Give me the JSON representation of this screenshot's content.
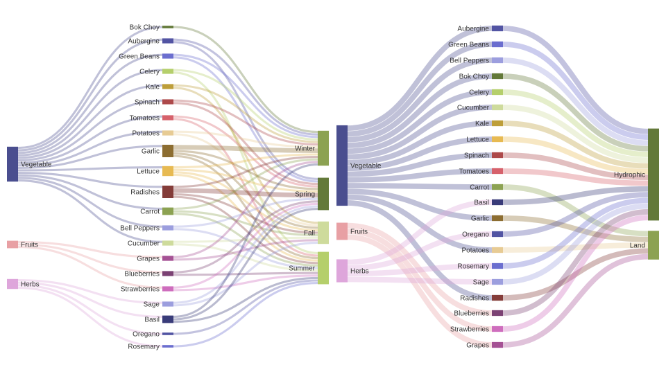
{
  "charts": [
    {
      "nodes": [
        {
          "name": "Vegetable",
          "col": 0,
          "color": "#4a4e8f"
        },
        {
          "name": "Fruits",
          "col": 0,
          "color": "#e8a0a4"
        },
        {
          "name": "Herbs",
          "col": 0,
          "color": "#dea6db"
        },
        {
          "name": "Bok Choy",
          "col": 1,
          "color": "#637939"
        },
        {
          "name": "Aubergine",
          "col": 1,
          "color": "#5254a3"
        },
        {
          "name": "Green Beans",
          "col": 1,
          "color": "#6b6ecf"
        },
        {
          "name": "Celery",
          "col": 1,
          "color": "#b5cf6b"
        },
        {
          "name": "Kale",
          "col": 1,
          "color": "#bd9e39"
        },
        {
          "name": "Spinach",
          "col": 1,
          "color": "#ad494a"
        },
        {
          "name": "Tomatoes",
          "col": 1,
          "color": "#d6616b"
        },
        {
          "name": "Potatoes",
          "col": 1,
          "color": "#e7cb94"
        },
        {
          "name": "Garlic",
          "col": 1,
          "color": "#8c6d31"
        },
        {
          "name": "Lettuce",
          "col": 1,
          "color": "#e7ba52"
        },
        {
          "name": "Radishes",
          "col": 1,
          "color": "#843c39"
        },
        {
          "name": "Carrot",
          "col": 1,
          "color": "#8ca252"
        },
        {
          "name": "Bell Peppers",
          "col": 1,
          "color": "#9c9ede"
        },
        {
          "name": "Cucumber",
          "col": 1,
          "color": "#cedb9c"
        },
        {
          "name": "Grapes",
          "col": 1,
          "color": "#a55194"
        },
        {
          "name": "Blueberries",
          "col": 1,
          "color": "#7b4173"
        },
        {
          "name": "Strawberries",
          "col": 1,
          "color": "#ce6dbd"
        },
        {
          "name": "Sage",
          "col": 1,
          "color": "#9c9ede"
        },
        {
          "name": "Basil",
          "col": 1,
          "color": "#393b79"
        },
        {
          "name": "Oregano",
          "col": 1,
          "color": "#5254a3"
        },
        {
          "name": "Rosemary",
          "col": 1,
          "color": "#6b6ecf"
        },
        {
          "name": "Winter",
          "col": 2,
          "color": "#8ca252"
        },
        {
          "name": "Spring",
          "col": 2,
          "color": "#637939"
        },
        {
          "name": "Fall",
          "col": 2,
          "color": "#cedb9c"
        },
        {
          "name": "Summer",
          "col": 2,
          "color": "#b5cf6b"
        }
      ],
      "links": [
        [
          "Vegetable",
          "Bok Choy",
          1
        ],
        [
          "Vegetable",
          "Aubergine",
          1
        ],
        [
          "Vegetable",
          "Green Beans",
          1
        ],
        [
          "Vegetable",
          "Celery",
          1
        ],
        [
          "Vegetable",
          "Kale",
          1
        ],
        [
          "Vegetable",
          "Spinach",
          1
        ],
        [
          "Vegetable",
          "Tomatoes",
          1
        ],
        [
          "Vegetable",
          "Potatoes",
          1
        ],
        [
          "Vegetable",
          "Garlic",
          1
        ],
        [
          "Vegetable",
          "Lettuce",
          1
        ],
        [
          "Vegetable",
          "Radishes",
          1
        ],
        [
          "Vegetable",
          "Carrot",
          1
        ],
        [
          "Vegetable",
          "Bell Peppers",
          1
        ],
        [
          "Vegetable",
          "Cucumber",
          1
        ],
        [
          "Fruits",
          "Grapes",
          1
        ],
        [
          "Fruits",
          "Blueberries",
          1
        ],
        [
          "Fruits",
          "Strawberries",
          1
        ],
        [
          "Herbs",
          "Sage",
          1
        ],
        [
          "Herbs",
          "Basil",
          1
        ],
        [
          "Herbs",
          "Oregano",
          1
        ],
        [
          "Herbs",
          "Rosemary",
          1
        ],
        [
          "Bok Choy",
          "Winter",
          1
        ],
        [
          "Aubergine",
          "Winter",
          1
        ],
        [
          "Aubergine",
          "Spring",
          1
        ],
        [
          "Green Beans",
          "Winter",
          1
        ],
        [
          "Green Beans",
          "Spring",
          1
        ],
        [
          "Celery",
          "Winter",
          1
        ],
        [
          "Celery",
          "Summer",
          1
        ],
        [
          "Kale",
          "Winter",
          1
        ],
        [
          "Kale",
          "Fall",
          1
        ],
        [
          "Spinach",
          "Winter",
          1
        ],
        [
          "Spinach",
          "Spring",
          1
        ],
        [
          "Tomatoes",
          "Spring",
          1
        ],
        [
          "Tomatoes",
          "Summer",
          1
        ],
        [
          "Potatoes",
          "Winter",
          1
        ],
        [
          "Potatoes",
          "Fall",
          1
        ],
        [
          "Garlic",
          "Winter",
          2
        ],
        [
          "Garlic",
          "Spring",
          1
        ],
        [
          "Garlic",
          "Fall",
          1
        ],
        [
          "Garlic",
          "Summer",
          1
        ],
        [
          "Lettuce",
          "Winter",
          1
        ],
        [
          "Lettuce",
          "Spring",
          1
        ],
        [
          "Lettuce",
          "Fall",
          1
        ],
        [
          "Lettuce",
          "Summer",
          1
        ],
        [
          "Radishes",
          "Winter",
          1
        ],
        [
          "Radishes",
          "Spring",
          2
        ],
        [
          "Radishes",
          "Fall",
          1
        ],
        [
          "Radishes",
          "Summer",
          1
        ],
        [
          "Carrot",
          "Winter",
          1
        ],
        [
          "Carrot",
          "Fall",
          1
        ],
        [
          "Carrot",
          "Summer",
          1
        ],
        [
          "Bell Peppers",
          "Spring",
          1
        ],
        [
          "Bell Peppers",
          "Summer",
          1
        ],
        [
          "Cucumber",
          "Fall",
          1
        ],
        [
          "Cucumber",
          "Summer",
          1
        ],
        [
          "Grapes",
          "Winter",
          1
        ],
        [
          "Grapes",
          "Fall",
          1
        ],
        [
          "Blueberries",
          "Spring",
          1
        ],
        [
          "Blueberries",
          "Summer",
          1
        ],
        [
          "Strawberries",
          "Spring",
          1
        ],
        [
          "Strawberries",
          "Summer",
          1
        ],
        [
          "Sage",
          "Spring",
          1
        ],
        [
          "Sage",
          "Fall",
          1
        ],
        [
          "Basil",
          "Winter",
          1
        ],
        [
          "Basil",
          "Spring",
          1
        ],
        [
          "Basil",
          "Summer",
          1
        ],
        [
          "Oregano",
          "Summer",
          1
        ],
        [
          "Rosemary",
          "Summer",
          1
        ]
      ]
    },
    {
      "nodes": [
        {
          "name": "Vegetable",
          "col": 0,
          "color": "#4a4e8f"
        },
        {
          "name": "Fruits",
          "col": 0,
          "color": "#e8a0a4"
        },
        {
          "name": "Herbs",
          "col": 0,
          "color": "#dea6db"
        },
        {
          "name": "Aubergine",
          "col": 1,
          "color": "#5254a3"
        },
        {
          "name": "Green Beans",
          "col": 1,
          "color": "#6b6ecf"
        },
        {
          "name": "Bell Peppers",
          "col": 1,
          "color": "#9c9ede"
        },
        {
          "name": "Bok Choy",
          "col": 1,
          "color": "#637939"
        },
        {
          "name": "Celery",
          "col": 1,
          "color": "#b5cf6b"
        },
        {
          "name": "Cucumber",
          "col": 1,
          "color": "#cedb9c"
        },
        {
          "name": "Kale",
          "col": 1,
          "color": "#bd9e39"
        },
        {
          "name": "Lettuce",
          "col": 1,
          "color": "#e7ba52"
        },
        {
          "name": "Spinach",
          "col": 1,
          "color": "#ad494a"
        },
        {
          "name": "Tomatoes",
          "col": 1,
          "color": "#d6616b"
        },
        {
          "name": "Carrot",
          "col": 1,
          "color": "#8ca252"
        },
        {
          "name": "Basil",
          "col": 1,
          "color": "#393b79"
        },
        {
          "name": "Garlic",
          "col": 1,
          "color": "#8c6d31"
        },
        {
          "name": "Oregano",
          "col": 1,
          "color": "#5254a3"
        },
        {
          "name": "Potatoes",
          "col": 1,
          "color": "#e7cb94"
        },
        {
          "name": "Rosemary",
          "col": 1,
          "color": "#6b6ecf"
        },
        {
          "name": "Sage",
          "col": 1,
          "color": "#9c9ede"
        },
        {
          "name": "Radishes",
          "col": 1,
          "color": "#843c39"
        },
        {
          "name": "Blueberries",
          "col": 1,
          "color": "#7b4173"
        },
        {
          "name": "Strawberries",
          "col": 1,
          "color": "#ce6dbd"
        },
        {
          "name": "Grapes",
          "col": 1,
          "color": "#a55194"
        },
        {
          "name": "Hydrophic",
          "col": 2,
          "color": "#637939"
        },
        {
          "name": "Land",
          "col": 2,
          "color": "#8ca252"
        }
      ],
      "links": [
        [
          "Vegetable",
          "Aubergine",
          1
        ],
        [
          "Vegetable",
          "Green Beans",
          1
        ],
        [
          "Vegetable",
          "Bell Peppers",
          1
        ],
        [
          "Vegetable",
          "Bok Choy",
          1
        ],
        [
          "Vegetable",
          "Celery",
          1
        ],
        [
          "Vegetable",
          "Cucumber",
          1
        ],
        [
          "Vegetable",
          "Kale",
          1
        ],
        [
          "Vegetable",
          "Lettuce",
          1
        ],
        [
          "Vegetable",
          "Spinach",
          1
        ],
        [
          "Vegetable",
          "Tomatoes",
          1
        ],
        [
          "Vegetable",
          "Carrot",
          1
        ],
        [
          "Vegetable",
          "Garlic",
          1
        ],
        [
          "Vegetable",
          "Potatoes",
          1
        ],
        [
          "Vegetable",
          "Radishes",
          1
        ],
        [
          "Fruits",
          "Blueberries",
          1
        ],
        [
          "Fruits",
          "Strawberries",
          1
        ],
        [
          "Fruits",
          "Grapes",
          1
        ],
        [
          "Herbs",
          "Basil",
          1
        ],
        [
          "Herbs",
          "Oregano",
          1
        ],
        [
          "Herbs",
          "Rosemary",
          1
        ],
        [
          "Herbs",
          "Sage",
          1
        ],
        [
          "Aubergine",
          "Hydrophic",
          1
        ],
        [
          "Green Beans",
          "Hydrophic",
          1
        ],
        [
          "Bell Peppers",
          "Hydrophic",
          1
        ],
        [
          "Bok Choy",
          "Hydrophic",
          1
        ],
        [
          "Celery",
          "Hydrophic",
          1
        ],
        [
          "Cucumber",
          "Hydrophic",
          1
        ],
        [
          "Kale",
          "Hydrophic",
          1
        ],
        [
          "Lettuce",
          "Hydrophic",
          1
        ],
        [
          "Spinach",
          "Hydrophic",
          1
        ],
        [
          "Tomatoes",
          "Hydrophic",
          1
        ],
        [
          "Carrot",
          "Land",
          1
        ],
        [
          "Basil",
          "Hydrophic",
          1
        ],
        [
          "Garlic",
          "Land",
          1
        ],
        [
          "Oregano",
          "Hydrophic",
          1
        ],
        [
          "Potatoes",
          "Land",
          1
        ],
        [
          "Rosemary",
          "Hydrophic",
          1
        ],
        [
          "Sage",
          "Hydrophic",
          1
        ],
        [
          "Radishes",
          "Land",
          1
        ],
        [
          "Blueberries",
          "Hydrophic",
          1
        ],
        [
          "Strawberries",
          "Hydrophic",
          1
        ],
        [
          "Grapes",
          "Land",
          1
        ]
      ]
    }
  ]
}
